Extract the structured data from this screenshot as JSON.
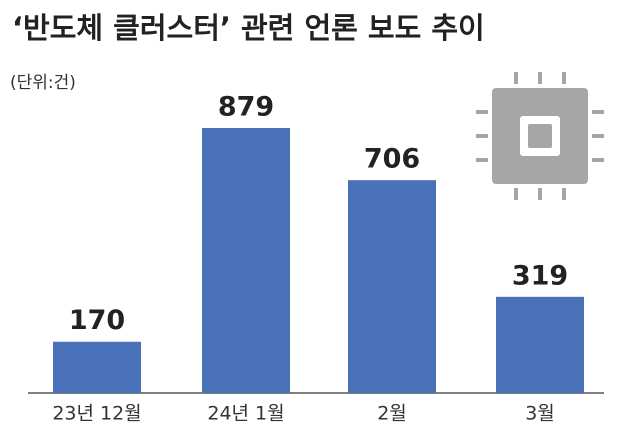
{
  "chart_data": {
    "type": "bar",
    "title": "‘반도체 클러스터’ 관련 언론 보도 추이",
    "subtitle": "(단위:건)",
    "categories": [
      "23년 12월",
      "24년 1월",
      "2월",
      "3월"
    ],
    "values": [
      170,
      879,
      706,
      319
    ],
    "color": "#4a72b8"
  }
}
